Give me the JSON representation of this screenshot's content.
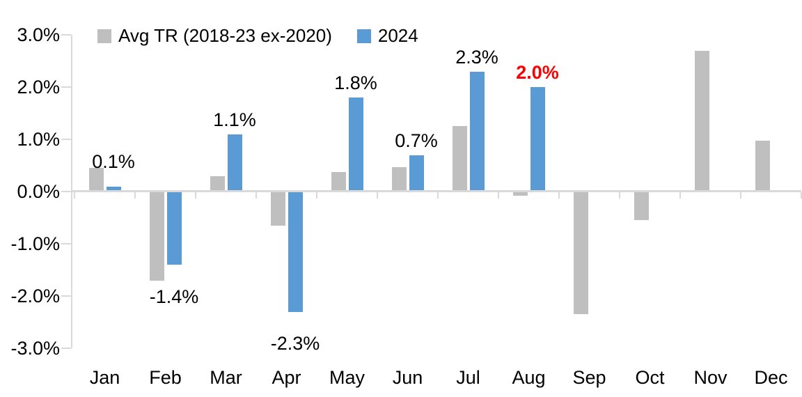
{
  "chart_data": {
    "type": "bar",
    "title": "",
    "categories": [
      "Jan",
      "Feb",
      "Mar",
      "Apr",
      "May",
      "Jun",
      "Jul",
      "Aug",
      "Sep",
      "Oct",
      "Nov",
      "Dec"
    ],
    "series": [
      {
        "name": "Avg TR (2018-23 ex-2020)",
        "color": "#BFBFBF",
        "values": [
          0.45,
          -1.7,
          0.3,
          -0.65,
          0.37,
          0.47,
          1.25,
          -0.08,
          -2.35,
          -0.55,
          2.7,
          0.97
        ]
      },
      {
        "name": "2024",
        "color": "#5B9BD5",
        "values": [
          0.1,
          -1.4,
          1.1,
          -2.3,
          1.8,
          0.7,
          2.3,
          2.0,
          null,
          null,
          null,
          null
        ]
      }
    ],
    "data_labels": [
      {
        "month": "Jan",
        "text": "0.1%",
        "color": "#000000",
        "bold": false,
        "dy": 12
      },
      {
        "month": "Feb",
        "text": "-1.4%",
        "color": "#000000",
        "bold": false,
        "dy": 0
      },
      {
        "month": "Mar",
        "text": "1.1%",
        "color": "#000000",
        "bold": false,
        "dy": 0
      },
      {
        "month": "Apr",
        "text": "-2.3%",
        "color": "#000000",
        "bold": false,
        "dy": 22
      },
      {
        "month": "May",
        "text": "1.8%",
        "color": "#000000",
        "bold": false,
        "dy": 0
      },
      {
        "month": "Jun",
        "text": "0.7%",
        "color": "#000000",
        "bold": false,
        "dy": 0
      },
      {
        "month": "Jul",
        "text": "2.3%",
        "color": "#000000",
        "bold": false,
        "dy": 0
      },
      {
        "month": "Aug",
        "text": "2.0%",
        "color": "#FF0000",
        "bold": true,
        "dy": 0
      }
    ],
    "yticks": [
      "3.0%",
      "2.0%",
      "1.0%",
      "0.0%",
      "-1.0%",
      "-2.0%",
      "-3.0%"
    ],
    "ylim": [
      -3,
      3
    ],
    "grid": "none",
    "legend_position": "top",
    "axis_color": "#D9D9D9",
    "label_color": "#000000",
    "highlight_color": "#FF0000"
  }
}
